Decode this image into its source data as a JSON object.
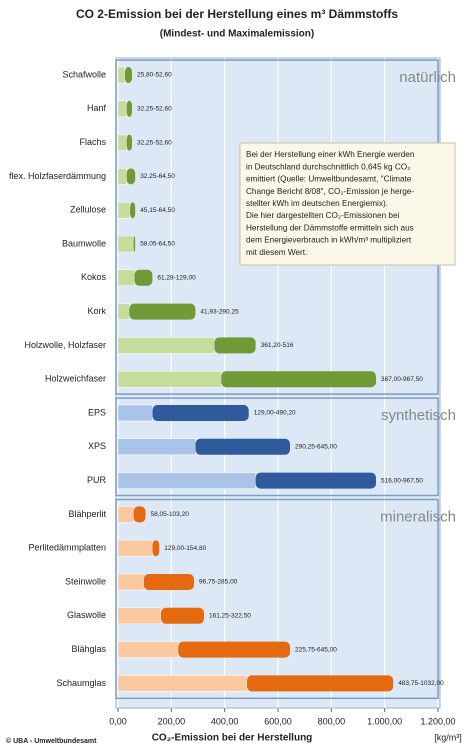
{
  "chart_data": {
    "type": "range-bar",
    "title": "CO 2-Emission bei der Herstellung eines m³ Dämmstoffs",
    "subtitle": "(Mindest- und Maximalemission)",
    "x_label": "CO₂-Emission bei der Herstellung",
    "x_unit": "[kg/m³]",
    "source": "© UBA - Umweltbundesamt",
    "annotation": [
      "Bei der Herstellung einer kWh Energie werden",
      "in Deutschland durchschnittlich 0,645 kg CO₂",
      "emittiert (Quelle: Umweltbundesamt, \"Climate",
      "Change Bericht 8/08\", CO₂-Emission je herge-",
      "stellter kWh im deutschen Energiemix).",
      "Die hier dargestellten CO₂-Emissionen bei",
      "Herstellung der Dämmstoffe ermitteln sich aus",
      "dem Energieverbrauch in kWh/m³ multipliziert",
      "mit diesem Wert."
    ],
    "xlim": [
      0,
      1200
    ],
    "xticks": [
      {
        "value": 0,
        "label": "0,00"
      },
      {
        "value": 200,
        "label": "200,00"
      },
      {
        "value": 400,
        "label": "400,00"
      },
      {
        "value": 600,
        "label": "600,00"
      },
      {
        "value": 800,
        "label": "800,00"
      },
      {
        "value": 1000,
        "label": "1.000,00"
      },
      {
        "value": 1200,
        "label": "1.200,00"
      }
    ],
    "grid": true,
    "groups": [
      {
        "name": "natürlich",
        "light": "#c6dc9c",
        "dark": "#6f9a35",
        "categories": [
          "Schafwolle",
          "Hanf",
          "Flachs",
          "flex. Holzfaserdämmung",
          "Zellulose",
          "Baumwolle",
          "Kokos",
          "Kork",
          "Holzwolle, Holzfaser",
          "Holzweichfaser"
        ],
        "min": [
          25.8,
          32.25,
          32.25,
          32.25,
          45.15,
          58.05,
          61.28,
          41.93,
          361.2,
          387
        ],
        "max": [
          52.6,
          52.6,
          52.6,
          64.5,
          64.5,
          64.5,
          129,
          290.25,
          516,
          967.5
        ],
        "value_labels": [
          "25,80-52,60",
          "32,25-52,60",
          "32,25-52,60",
          "32,25-64,50",
          "45,15-64,50",
          "58,05-64,50",
          "61,28-129,00",
          "41,93-290,25",
          "361,20-516",
          "387,00-967,50"
        ]
      },
      {
        "name": "synthetisch",
        "light": "#a9c4e8",
        "dark": "#2f5a9c",
        "categories": [
          "EPS",
          "XPS",
          "PUR"
        ],
        "min": [
          129,
          290.25,
          516
        ],
        "max": [
          490.2,
          645,
          967.5
        ],
        "value_labels": [
          "129,00-490,20",
          "290,25-645,00",
          "516,00-967,50"
        ]
      },
      {
        "name": "mineralisch",
        "light": "#fbc9a0",
        "dark": "#e4690f",
        "categories": [
          "Blähperlit",
          "Perlitedämmplatten",
          "Steinwolle",
          "Glaswolle",
          "Blähglas",
          "Schaumglas"
        ],
        "min": [
          58.05,
          129,
          96.75,
          161.25,
          225.75,
          483.75
        ],
        "max": [
          103.2,
          154.8,
          285,
          322.5,
          645,
          1032
        ],
        "value_labels": [
          "58,05-103,20",
          "129,00-154,80",
          "96,75-285,00",
          "161,25-322,50",
          "225,75-645,00",
          "483,75-1032,00"
        ]
      }
    ]
  }
}
